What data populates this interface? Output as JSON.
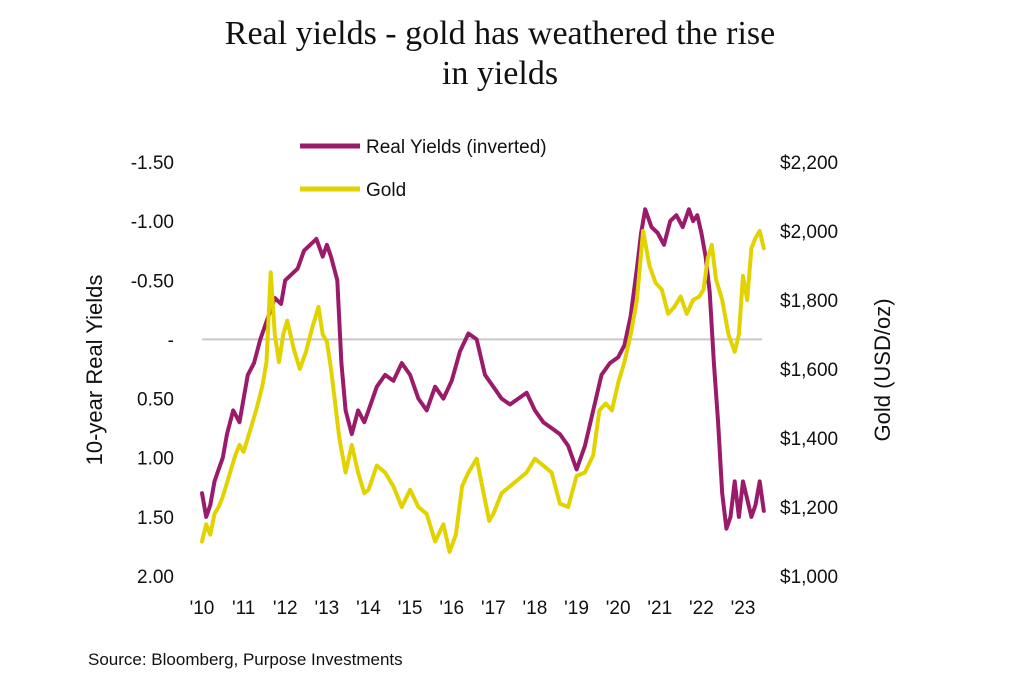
{
  "title_line1": "Real yields - gold has weathered the rise",
  "title_line2": "in yields",
  "source": "Source: Bloomberg, Purpose Investments",
  "chart_data": {
    "type": "line",
    "title": "Real yields - gold has weathered the rise in yields",
    "ylabel_left": "10-year Real Yields",
    "ylabel_right": "Gold (USD/oz)",
    "left_axis": {
      "inverted": true,
      "range": [
        -1.5,
        2.0
      ],
      "tick_values": [
        -1.5,
        -1.0,
        -0.5,
        0,
        0.5,
        1.0,
        1.5,
        2.0
      ],
      "tick_labels": [
        "-1.50",
        "-1.00",
        "-0.50",
        "-",
        "0.50",
        "1.00",
        "1.50",
        "2.00"
      ]
    },
    "right_axis": {
      "range": [
        1000,
        2200
      ],
      "tick_values": [
        1000,
        1200,
        1400,
        1600,
        1800,
        2000,
        2200
      ],
      "tick_labels": [
        "$1,000",
        "$1,200",
        "$1,400",
        "$1,600",
        "$1,800",
        "$2,000",
        "$2,200"
      ]
    },
    "x_range": [
      2010,
      2023.6
    ],
    "x_tick_values": [
      2010,
      2011,
      2012,
      2013,
      2014,
      2015,
      2016,
      2017,
      2018,
      2019,
      2020,
      2021,
      2022,
      2023
    ],
    "x_tick_labels": [
      "'10",
      "'11",
      "'12",
      "'13",
      "'14",
      "'15",
      "'16",
      "'17",
      "'18",
      "'19",
      "'20",
      "'21",
      "'22",
      "'23"
    ],
    "zero_line": true,
    "grid": false,
    "legend_position": "top-center",
    "series": [
      {
        "name": "Real Yields (inverted)",
        "color": "#9b1b6b",
        "axis": "left",
        "x": [
          2010.0,
          2010.1,
          2010.2,
          2010.3,
          2010.4,
          2010.5,
          2010.6,
          2010.75,
          2010.9,
          2011.0,
          2011.1,
          2011.25,
          2011.4,
          2011.5,
          2011.6,
          2011.75,
          2011.9,
          2012.0,
          2012.15,
          2012.3,
          2012.45,
          2012.6,
          2012.75,
          2012.9,
          2013.0,
          2013.1,
          2013.25,
          2013.35,
          2013.45,
          2013.6,
          2013.75,
          2013.9,
          2014.0,
          2014.2,
          2014.4,
          2014.6,
          2014.8,
          2015.0,
          2015.2,
          2015.4,
          2015.6,
          2015.8,
          2016.0,
          2016.2,
          2016.4,
          2016.6,
          2016.8,
          2017.0,
          2017.2,
          2017.4,
          2017.6,
          2017.8,
          2018.0,
          2018.2,
          2018.4,
          2018.6,
          2018.8,
          2019.0,
          2019.2,
          2019.4,
          2019.6,
          2019.8,
          2020.0,
          2020.15,
          2020.3,
          2020.45,
          2020.55,
          2020.65,
          2020.8,
          2020.95,
          2021.1,
          2021.25,
          2021.4,
          2021.55,
          2021.7,
          2021.8,
          2021.9,
          2022.0,
          2022.1,
          2022.2,
          2022.3,
          2022.4,
          2022.5,
          2022.6,
          2022.7,
          2022.8,
          2022.9,
          2023.0,
          2023.1,
          2023.2,
          2023.3,
          2023.4,
          2023.5
        ],
        "values": [
          1.3,
          1.5,
          1.4,
          1.2,
          1.1,
          1.0,
          0.8,
          0.6,
          0.7,
          0.5,
          0.3,
          0.2,
          0.0,
          -0.1,
          -0.2,
          -0.35,
          -0.3,
          -0.5,
          -0.55,
          -0.6,
          -0.75,
          -0.8,
          -0.85,
          -0.7,
          -0.8,
          -0.7,
          -0.5,
          0.2,
          0.6,
          0.8,
          0.6,
          0.7,
          0.6,
          0.4,
          0.3,
          0.35,
          0.2,
          0.3,
          0.5,
          0.6,
          0.4,
          0.5,
          0.35,
          0.1,
          -0.05,
          0.0,
          0.3,
          0.4,
          0.5,
          0.55,
          0.5,
          0.45,
          0.6,
          0.7,
          0.75,
          0.8,
          0.9,
          1.1,
          0.9,
          0.6,
          0.3,
          0.2,
          0.15,
          0.05,
          -0.2,
          -0.6,
          -0.9,
          -1.1,
          -0.95,
          -0.9,
          -0.8,
          -1.0,
          -1.05,
          -0.95,
          -1.1,
          -1.0,
          -1.05,
          -0.9,
          -0.7,
          -0.4,
          0.2,
          0.7,
          1.3,
          1.6,
          1.5,
          1.2,
          1.5,
          1.2,
          1.35,
          1.5,
          1.4,
          1.2,
          1.45
        ]
      },
      {
        "name": "Gold",
        "color": "#e2d300",
        "axis": "right",
        "x": [
          2010.0,
          2010.1,
          2010.2,
          2010.3,
          2010.4,
          2010.5,
          2010.65,
          2010.8,
          2010.9,
          2011.0,
          2011.15,
          2011.3,
          2011.45,
          2011.55,
          2011.65,
          2011.75,
          2011.85,
          2011.95,
          2012.05,
          2012.2,
          2012.35,
          2012.5,
          2012.65,
          2012.8,
          2012.9,
          2013.0,
          2013.1,
          2013.2,
          2013.3,
          2013.45,
          2013.6,
          2013.75,
          2013.9,
          2014.0,
          2014.2,
          2014.4,
          2014.6,
          2014.8,
          2015.0,
          2015.2,
          2015.4,
          2015.6,
          2015.8,
          2015.95,
          2016.1,
          2016.25,
          2016.4,
          2016.6,
          2016.75,
          2016.9,
          2017.0,
          2017.2,
          2017.4,
          2017.6,
          2017.8,
          2018.0,
          2018.2,
          2018.4,
          2018.6,
          2018.8,
          2019.0,
          2019.2,
          2019.4,
          2019.55,
          2019.7,
          2019.85,
          2020.0,
          2020.15,
          2020.3,
          2020.45,
          2020.6,
          2020.75,
          2020.9,
          2021.05,
          2021.2,
          2021.35,
          2021.5,
          2021.65,
          2021.8,
          2021.95,
          2022.05,
          2022.15,
          2022.25,
          2022.35,
          2022.5,
          2022.65,
          2022.8,
          2022.9,
          2023.0,
          2023.1,
          2023.2,
          2023.3,
          2023.4,
          2023.5
        ],
        "values": [
          1100,
          1150,
          1120,
          1180,
          1200,
          1230,
          1290,
          1350,
          1380,
          1360,
          1420,
          1480,
          1550,
          1620,
          1880,
          1700,
          1620,
          1700,
          1740,
          1660,
          1600,
          1650,
          1720,
          1780,
          1700,
          1680,
          1600,
          1500,
          1400,
          1300,
          1380,
          1300,
          1240,
          1250,
          1320,
          1300,
          1260,
          1200,
          1250,
          1200,
          1180,
          1100,
          1150,
          1070,
          1120,
          1260,
          1300,
          1340,
          1250,
          1160,
          1180,
          1240,
          1260,
          1280,
          1300,
          1340,
          1320,
          1300,
          1210,
          1200,
          1290,
          1300,
          1350,
          1480,
          1500,
          1480,
          1560,
          1620,
          1700,
          1800,
          2000,
          1900,
          1850,
          1830,
          1760,
          1780,
          1810,
          1760,
          1800,
          1810,
          1830,
          1920,
          1960,
          1860,
          1800,
          1700,
          1650,
          1700,
          1870,
          1800,
          1950,
          1980,
          2000,
          1950
        ]
      }
    ]
  }
}
